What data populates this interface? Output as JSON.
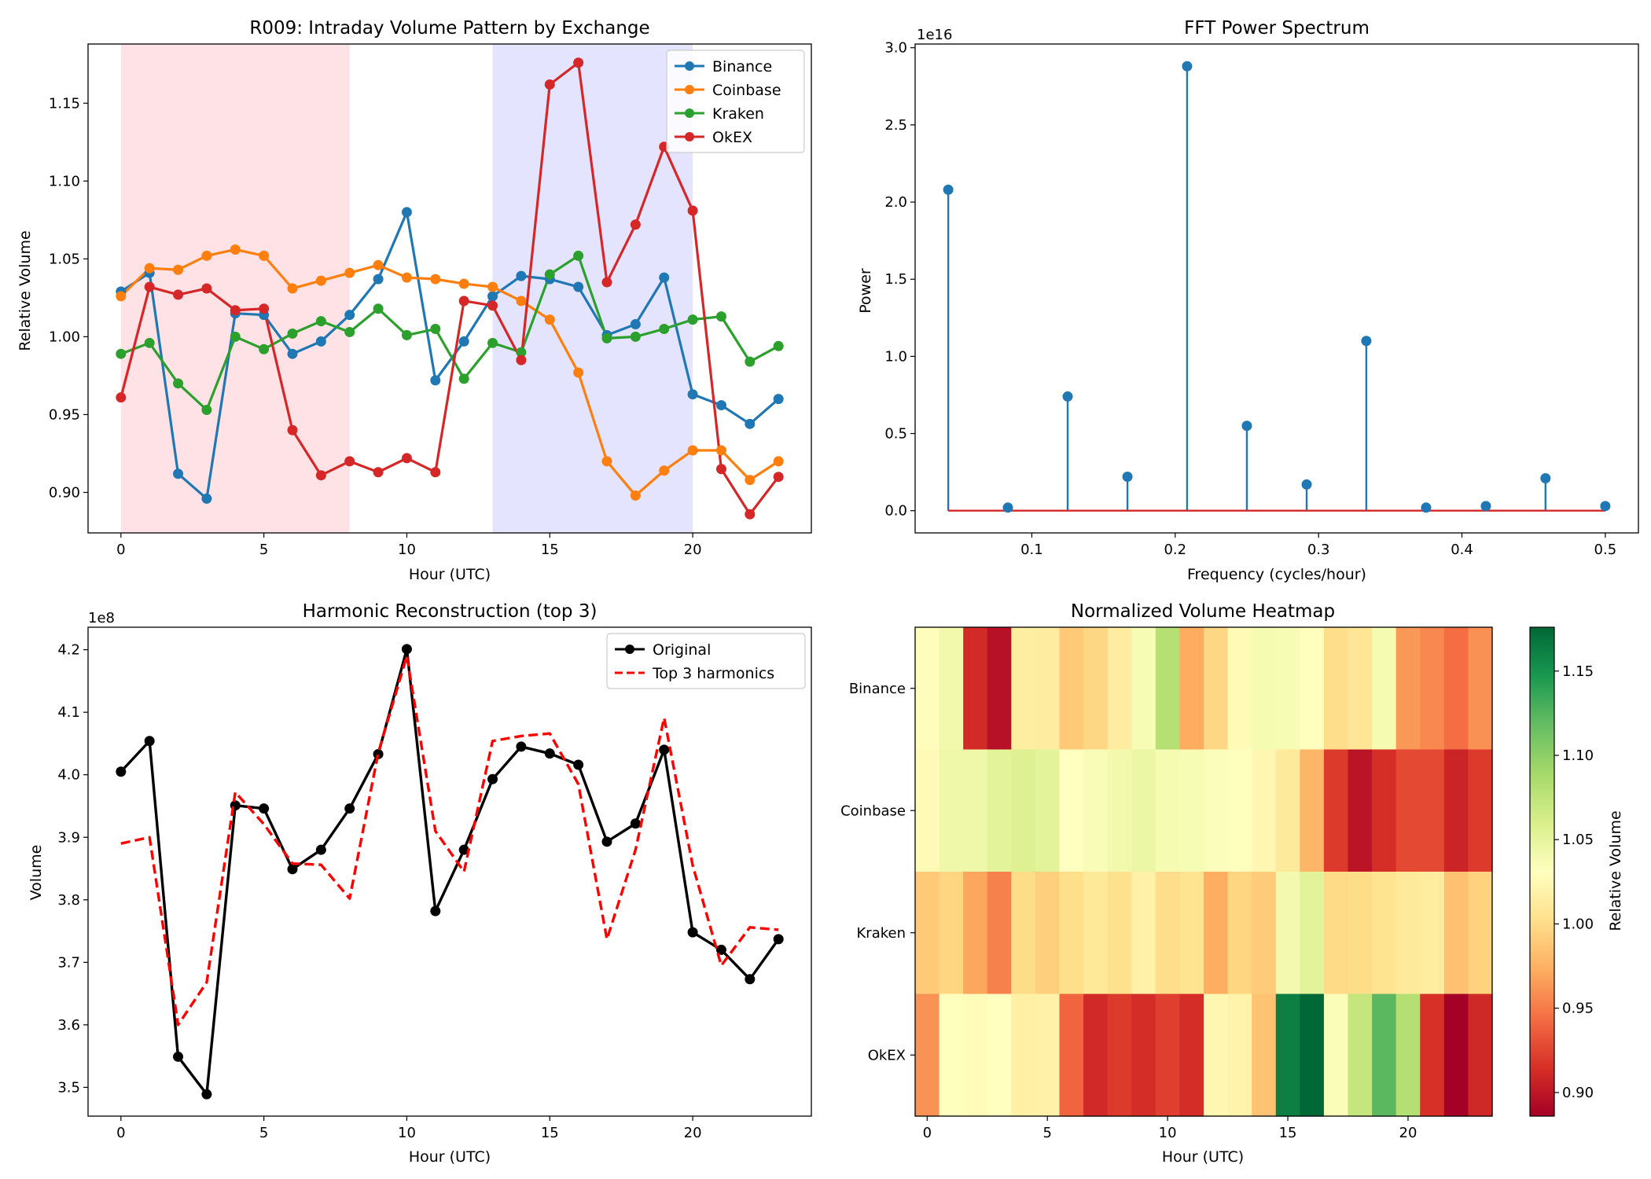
{
  "chart_data": [
    {
      "type": "line",
      "title": "R009: Intraday Volume Pattern by Exchange",
      "xlabel": "Hour (UTC)",
      "ylabel": "Relative Volume",
      "xlim": [
        -1.15,
        24.15
      ],
      "ylim": [
        0.874,
        1.188
      ],
      "xticks": [
        0,
        5,
        10,
        15,
        20
      ],
      "yticks": [
        0.9,
        0.95,
        1.0,
        1.05,
        1.1,
        1.15
      ],
      "ytick_labels": [
        "0.90",
        "0.95",
        "1.00",
        "1.05",
        "1.10",
        "1.15"
      ],
      "shaded_regions": [
        {
          "x": [
            0,
            8
          ],
          "color": "#ffe2e5"
        },
        {
          "x": [
            13,
            20
          ],
          "color": "#e4e4ff"
        }
      ],
      "legend": "top-right",
      "x": [
        0,
        1,
        2,
        3,
        4,
        5,
        6,
        7,
        8,
        9,
        10,
        11,
        12,
        13,
        14,
        15,
        16,
        17,
        18,
        19,
        20,
        21,
        22,
        23
      ],
      "series": [
        {
          "name": "Binance",
          "color": "#1f77b4",
          "values": [
            1.029,
            1.041,
            0.912,
            0.896,
            1.015,
            1.014,
            0.989,
            0.997,
            1.014,
            1.037,
            1.08,
            0.972,
            0.997,
            1.026,
            1.039,
            1.037,
            1.032,
            1.001,
            1.008,
            1.038,
            0.963,
            0.956,
            0.944,
            0.96
          ]
        },
        {
          "name": "Coinbase",
          "color": "#ff7f0e",
          "values": [
            1.026,
            1.044,
            1.043,
            1.052,
            1.056,
            1.052,
            1.031,
            1.036,
            1.041,
            1.046,
            1.038,
            1.037,
            1.034,
            1.032,
            1.023,
            1.011,
            0.977,
            0.92,
            0.898,
            0.914,
            0.927,
            0.927,
            0.908,
            0.92
          ]
        },
        {
          "name": "Kraken",
          "color": "#2ca02c",
          "values": [
            0.989,
            0.996,
            0.97,
            0.953,
            1.0,
            0.992,
            1.002,
            1.01,
            1.003,
            1.018,
            1.001,
            1.005,
            0.973,
            0.996,
            0.99,
            1.04,
            1.052,
            0.999,
            1.0,
            1.005,
            1.011,
            1.013,
            0.984,
            0.994
          ]
        },
        {
          "name": "OkEX",
          "color": "#d62728",
          "values": [
            0.961,
            1.032,
            1.027,
            1.031,
            1.017,
            1.018,
            0.94,
            0.911,
            0.92,
            0.913,
            0.922,
            0.913,
            1.023,
            1.02,
            0.985,
            1.162,
            1.176,
            1.035,
            1.072,
            1.122,
            1.081,
            0.915,
            0.886,
            0.91
          ]
        }
      ]
    },
    {
      "type": "stem",
      "title": "FFT Power Spectrum",
      "xlabel": "Frequency (cycles/hour)",
      "ylabel": "Power",
      "scale_label": "1e16",
      "xlim": [
        0.0186,
        0.5231
      ],
      "ylim": [
        -0.144,
        3.024
      ],
      "xticks": [
        0.1,
        0.2,
        0.3,
        0.4,
        0.5
      ],
      "xtick_labels": [
        "0.1",
        "0.2",
        "0.3",
        "0.4",
        "0.5"
      ],
      "yticks": [
        0.0,
        0.5,
        1.0,
        1.5,
        2.0,
        2.5,
        3.0
      ],
      "ytick_labels": [
        "0.0",
        "0.5",
        "1.0",
        "1.5",
        "2.0",
        "2.5",
        "3.0"
      ],
      "marker_color": "#1f77b4",
      "baseline_color": "#d62728",
      "x": [
        0.0417,
        0.0833,
        0.125,
        0.1667,
        0.2083,
        0.25,
        0.2917,
        0.3333,
        0.375,
        0.4167,
        0.4583,
        0.5
      ],
      "values": [
        2.08,
        0.02,
        0.74,
        0.22,
        2.88,
        0.55,
        0.17,
        1.1,
        0.02,
        0.03,
        0.21,
        0.03
      ]
    },
    {
      "type": "line",
      "title": "Harmonic Reconstruction (top 3)",
      "xlabel": "Hour (UTC)",
      "ylabel": "Volume",
      "scale_label": "1e8",
      "xlim": [
        -1.15,
        24.15
      ],
      "ylim": [
        3.454,
        4.236
      ],
      "xticks": [
        0,
        5,
        10,
        15,
        20
      ],
      "yticks": [
        3.5,
        3.6,
        3.7,
        3.8,
        3.9,
        4.0,
        4.1,
        4.2
      ],
      "ytick_labels": [
        "3.5",
        "3.6",
        "3.7",
        "3.8",
        "3.9",
        "4.0",
        "4.1",
        "4.2"
      ],
      "legend": "top-right",
      "x": [
        0,
        1,
        2,
        3,
        4,
        5,
        6,
        7,
        8,
        9,
        10,
        11,
        12,
        13,
        14,
        15,
        16,
        17,
        18,
        19,
        20,
        21,
        22,
        23
      ],
      "series": [
        {
          "name": "Original",
          "color": "#000000",
          "style": "solid-marker",
          "values": [
            4.005,
            4.054,
            3.549,
            3.489,
            3.951,
            3.946,
            3.849,
            3.88,
            3.946,
            4.033,
            4.201,
            3.782,
            3.88,
            3.993,
            4.045,
            4.034,
            4.016,
            3.893,
            3.922,
            4.04,
            3.748,
            3.72,
            3.673,
            3.737
          ]
        },
        {
          "name": "Top 3 harmonics",
          "color": "#ff0000",
          "style": "dashed",
          "values": [
            3.89,
            3.9,
            3.6,
            3.668,
            3.972,
            3.921,
            3.858,
            3.856,
            3.802,
            4.035,
            4.19,
            3.91,
            3.845,
            4.054,
            4.062,
            4.066,
            3.985,
            3.737,
            3.88,
            4.091,
            3.855,
            3.695,
            3.756,
            3.752
          ]
        }
      ]
    },
    {
      "type": "heatmap",
      "title": "Normalized Volume Heatmap",
      "xlabel": "Hour (UTC)",
      "colorbar_label": "Relative Volume",
      "colormap": "RdYlGn",
      "vmin": 0.886,
      "vmax": 1.176,
      "xticks": [
        0,
        5,
        10,
        15,
        20
      ],
      "colorbar_ticks": [
        0.9,
        0.95,
        1.0,
        1.05,
        1.1,
        1.15
      ],
      "colorbar_tick_labels": [
        "0.90",
        "0.95",
        "1.00",
        "1.05",
        "1.10",
        "1.15"
      ],
      "rows": [
        "Binance",
        "Coinbase",
        "Kraken",
        "OkEX"
      ],
      "values": [
        [
          1.029,
          1.041,
          0.912,
          0.896,
          1.015,
          1.014,
          0.989,
          0.997,
          1.014,
          1.037,
          1.08,
          0.972,
          0.997,
          1.026,
          1.039,
          1.037,
          1.032,
          1.001,
          1.008,
          1.038,
          0.963,
          0.956,
          0.944,
          0.96
        ],
        [
          1.026,
          1.044,
          1.043,
          1.052,
          1.056,
          1.052,
          1.031,
          1.036,
          1.041,
          1.046,
          1.038,
          1.037,
          1.034,
          1.032,
          1.023,
          1.011,
          0.977,
          0.92,
          0.898,
          0.914,
          0.927,
          0.927,
          0.908,
          0.92
        ],
        [
          0.989,
          0.996,
          0.97,
          0.953,
          1.0,
          0.992,
          1.002,
          1.01,
          1.003,
          1.018,
          1.001,
          1.005,
          0.973,
          0.996,
          0.99,
          1.04,
          1.052,
          0.999,
          1.0,
          1.005,
          1.011,
          1.013,
          0.984,
          0.994
        ],
        [
          0.961,
          1.032,
          1.027,
          1.031,
          1.017,
          1.018,
          0.94,
          0.911,
          0.92,
          0.913,
          0.922,
          0.913,
          1.023,
          1.02,
          0.985,
          1.162,
          1.176,
          1.035,
          1.072,
          1.122,
          1.081,
          0.915,
          0.886,
          0.91
        ]
      ]
    }
  ]
}
